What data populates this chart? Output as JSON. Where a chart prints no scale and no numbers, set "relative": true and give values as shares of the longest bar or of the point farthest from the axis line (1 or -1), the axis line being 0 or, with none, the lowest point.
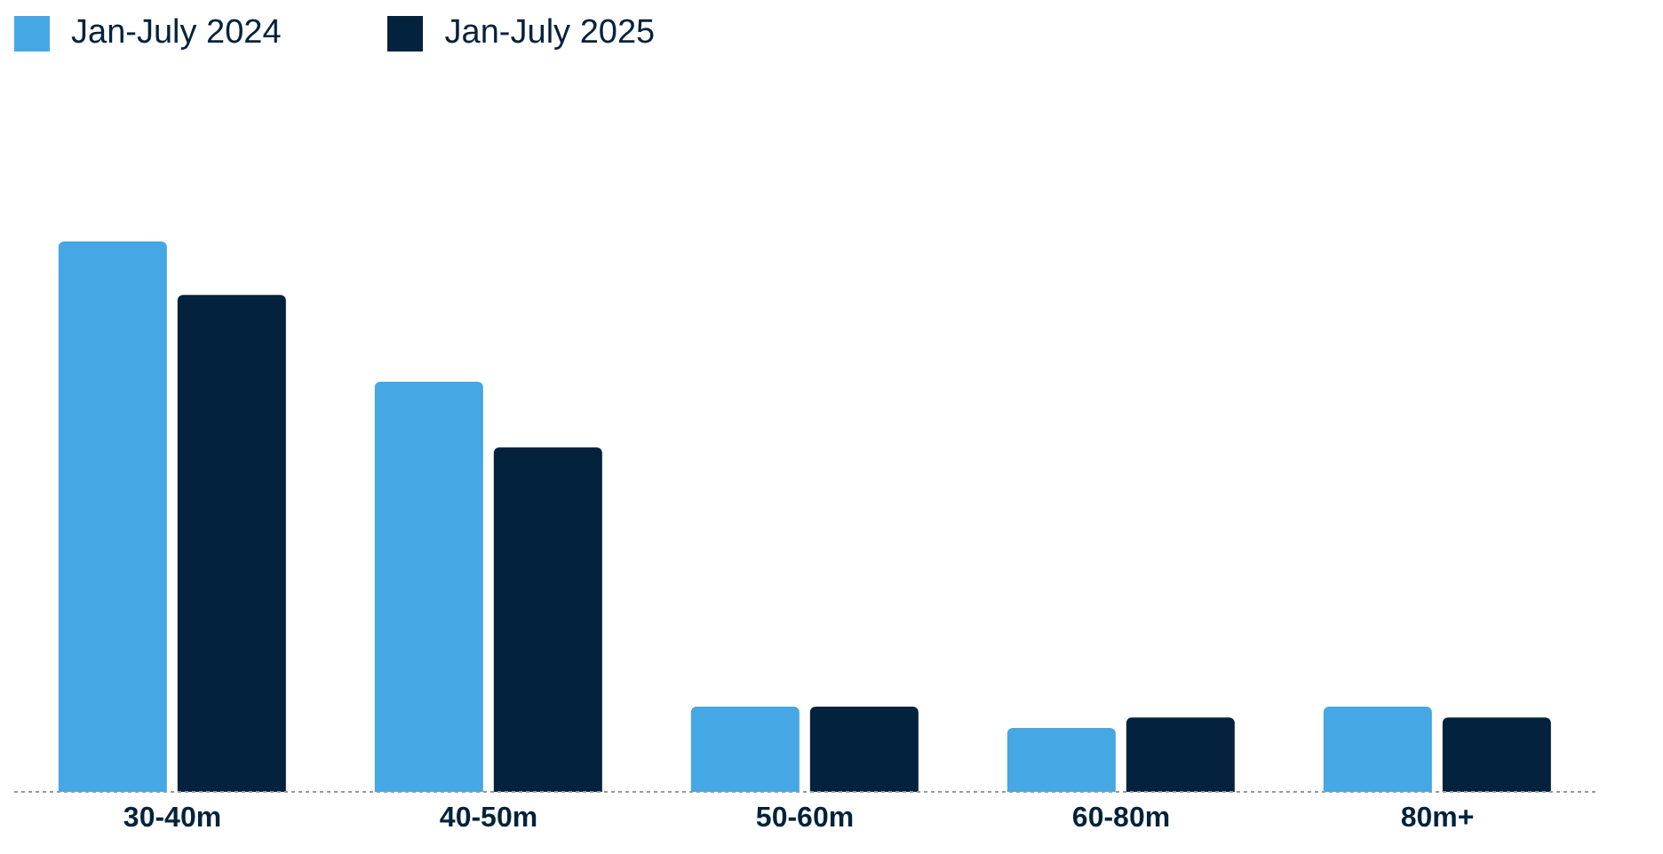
{
  "chart_data": {
    "type": "bar",
    "relative": true,
    "categories": [
      "30-40m",
      "40-50m",
      "50-60m",
      "60-80m",
      "80m+"
    ],
    "series": [
      {
        "name": "Jan-July 2024",
        "color": "#45a7e3",
        "values": [
          1,
          0.745,
          0.155,
          0.116,
          0.155
        ]
      },
      {
        "name": "Jan-July 2025",
        "color": "#03223d",
        "values": [
          0.903,
          0.626,
          0.155,
          0.135,
          0.135
        ]
      }
    ],
    "legend": "top left",
    "grid": false
  }
}
